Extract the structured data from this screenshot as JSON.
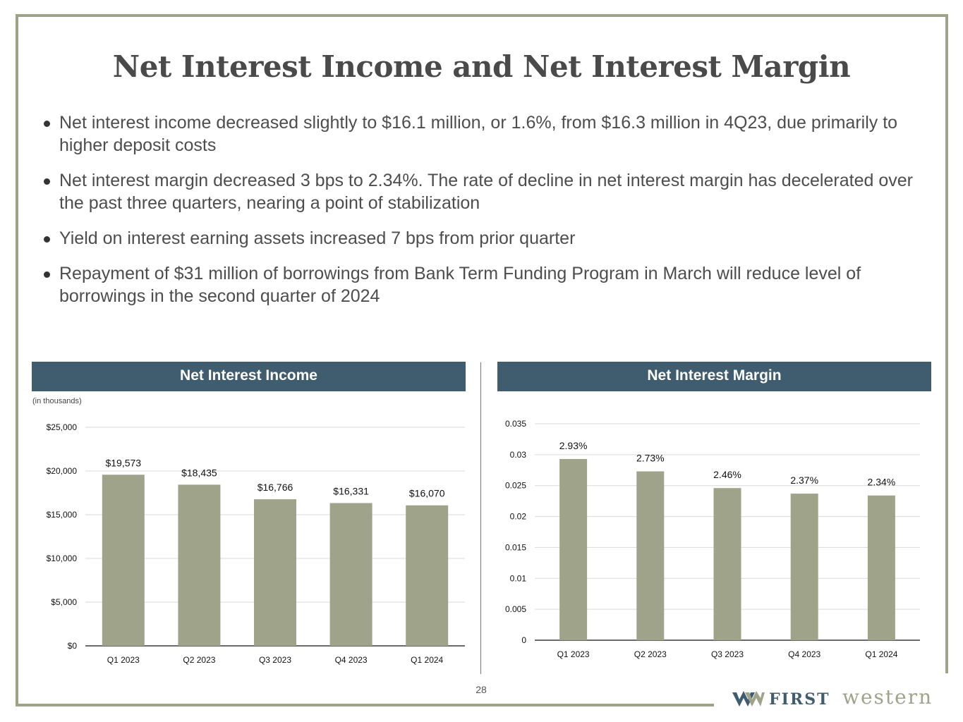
{
  "slide": {
    "title": "Net Interest Income and Net Interest Margin",
    "page_number": "28",
    "bullets": [
      "Net interest income decreased slightly to $16.1 million, or 1.6%, from $16.3 million in 4Q23, due primarily to higher deposit costs",
      "Net interest margin decreased 3 bps to 2.34%. The rate of decline in net interest margin has decelerated over the past three quarters, nearing a point of stabilization",
      "Yield on interest earning assets increased 7 bps from prior quarter",
      "Repayment of $31 million of borrowings from Bank Term Funding Program in March will reduce level of borrowings in the second quarter of 2024"
    ],
    "logo": {
      "first": "FIRST",
      "western": "western"
    },
    "colors": {
      "frame": "#9ea38a",
      "header": "#3f5d6f",
      "bar": "#9ea38a",
      "logo_navy": "#3f5d6f"
    }
  },
  "chart_data": [
    {
      "type": "bar",
      "title": "Net Interest Income",
      "subtitle": "(in thousands)",
      "categories": [
        "Q1 2023",
        "Q2 2023",
        "Q3 2023",
        "Q4 2023",
        "Q1 2024"
      ],
      "values": [
        19573,
        18435,
        16766,
        16331,
        16070
      ],
      "data_labels": [
        "$19,573",
        "$18,435",
        "$16,766",
        "$16,331",
        "$16,070"
      ],
      "yticks": [
        0,
        5000,
        10000,
        15000,
        20000,
        25000
      ],
      "ytick_labels": [
        "$0",
        "$5,000",
        "$10,000",
        "$15,000",
        "$20,000",
        "$25,000"
      ],
      "ylim": [
        0,
        25000
      ],
      "grid": true
    },
    {
      "type": "bar",
      "title": "Net Interest Margin",
      "categories": [
        "Q1 2023",
        "Q2 2023",
        "Q3 2023",
        "Q4 2023",
        "Q1 2024"
      ],
      "values": [
        0.0293,
        0.0273,
        0.0246,
        0.0237,
        0.0234
      ],
      "data_labels": [
        "2.93%",
        "2.73%",
        "2.46%",
        "2.37%",
        "2.34%"
      ],
      "yticks": [
        0,
        0.005,
        0.01,
        0.015,
        0.02,
        0.025,
        0.03,
        0.035
      ],
      "ytick_labels": [
        "0",
        "0.005",
        "0.01",
        "0.015",
        "0.02",
        "0.025",
        "0.03",
        "0.035"
      ],
      "ylim": [
        0,
        0.035
      ],
      "grid": true
    }
  ]
}
